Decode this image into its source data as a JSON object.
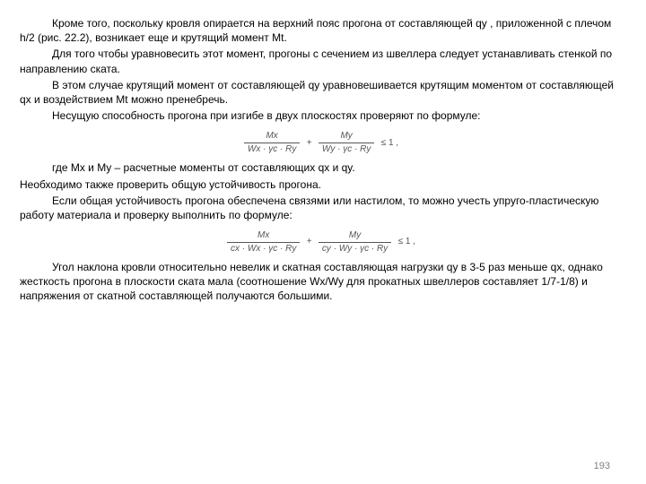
{
  "paragraphs": {
    "p1": "Кроме того, поскольку кровля опирается на верхний пояс прогона от составляющей qy , приложенной с плечом h/2 (рис. 22.2), возникает еще и крутящий момент Mt.",
    "p2": "Для того чтобы уравновесить этот момент, прогоны с сечением из швеллера следует устанавливать стенкой по направлению ската.",
    "p3": "В этом случае крутящий момент от составляющей qy уравновешивается крутящим моментом от составляющей qx и воздействием Mt можно пренебречь.",
    "p4": "Несущую способность прогона при изгибе в двух плоскостях проверяют по формуле:",
    "p5": "где Mx и My – расчетные моменты от составляющих qx и qy.",
    "p6": "Необходимо также проверить общую устойчивость прогона.",
    "p7": "Если общая устойчивость прогона обеспечена связями или настилом, то можно учесть упруго-пластическую работу материала и проверку выполнить по формуле:",
    "p8": "Угол наклона кровли относительно невелик и скатная составляющая нагрузки qy в 3-5 раз меньше qx, однако жесткость прогона в плоскости ската мала (соотношение Wx/Wy для прокатных швеллеров составляет 1/7-1/8) и напряжения от скатной составляющей получаются большими."
  },
  "formula1": {
    "term1_num": "Mx",
    "term1_den": "Wx · γc · Ry",
    "plus": "+",
    "term2_num": "My",
    "term2_den": "Wy · γc · Ry",
    "rel": "≤ 1 ,"
  },
  "formula2": {
    "term1_num": "Mx",
    "term1_den": "cx · Wx · γc · Ry",
    "plus": "+",
    "term2_num": "My",
    "term2_den": "cy · Wy · γc · Ry",
    "rel": "≤ 1 ,"
  },
  "pageNumber": "193",
  "style": {
    "font_family": "Arial, sans-serif",
    "body_fontsize": 12,
    "formula_fontsize": 10,
    "text_color": "#000000",
    "formula_color": "#555555",
    "pagenum_color": "#808080",
    "background": "#ffffff"
  }
}
